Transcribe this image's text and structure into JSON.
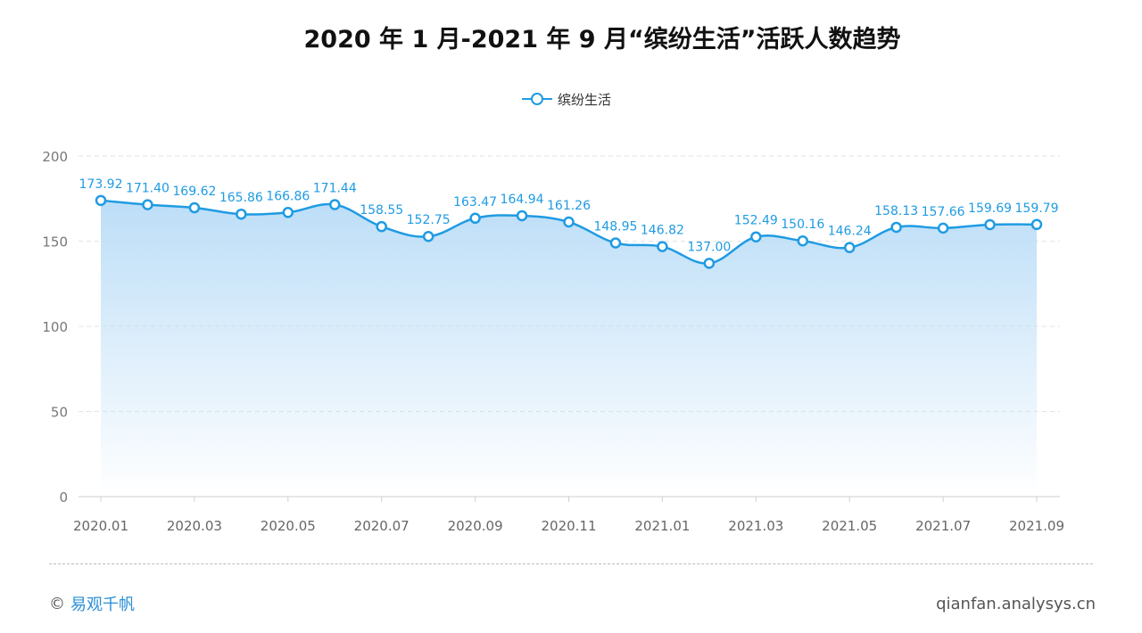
{
  "chart_data": {
    "type": "area",
    "title": "2020 年 1 月-2021 年 9 月“缤纷生活”活跃人数趋势",
    "categories": [
      "2020.01",
      "2020.02",
      "2020.03",
      "2020.04",
      "2020.05",
      "2020.06",
      "2020.07",
      "2020.08",
      "2020.09",
      "2020.10",
      "2020.11",
      "2020.12",
      "2021.01",
      "2021.02",
      "2021.03",
      "2021.04",
      "2021.05",
      "2021.06",
      "2021.07",
      "2021.08",
      "2021.09"
    ],
    "tick_labels": [
      "2020.01",
      "2020.03",
      "2020.05",
      "2020.07",
      "2020.09",
      "2020.11",
      "2021.01",
      "2021.03",
      "2021.05",
      "2021.07",
      "2021.09"
    ],
    "series": [
      {
        "name": "缤纷生活",
        "values": [
          173.92,
          171.4,
          169.62,
          165.86,
          166.86,
          171.44,
          158.55,
          152.75,
          163.47,
          164.94,
          161.26,
          148.95,
          146.82,
          137.0,
          152.49,
          150.16,
          146.24,
          158.13,
          157.66,
          159.69,
          159.79
        ],
        "labels": [
          "173.92",
          "171.40",
          "169.62",
          "165.86",
          "166.86",
          "171.44",
          "158.55",
          "152.75",
          "163.47",
          "164.94",
          "161.26",
          "148.95",
          "146.82",
          "137.00",
          "152.49",
          "150.16",
          "146.24",
          "158.13",
          "157.66",
          "159.69",
          "159.79"
        ]
      }
    ],
    "ylim": [
      0,
      200
    ],
    "yticks": [
      "0",
      "50",
      "100",
      "150",
      "200"
    ],
    "grid": true,
    "legend": "top-center",
    "colors": {
      "line": "#1f9be3",
      "label": "#1f9be3",
      "area_top": "#b9dcf7",
      "grid": "#e3e3e3"
    }
  },
  "footer": {
    "copyright_symbol": "©",
    "brand": "易观千帆",
    "site": "qianfan.analysys.cn"
  }
}
